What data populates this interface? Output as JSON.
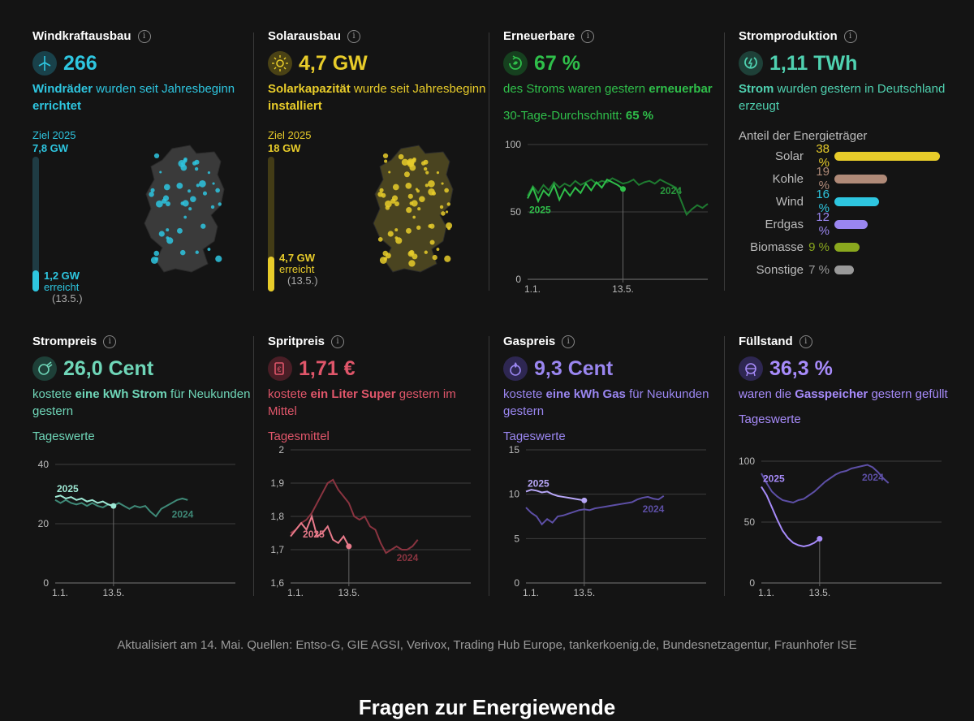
{
  "colors": {
    "wind": "#2ec6e0",
    "solar": "#e8cc2a",
    "renew": "#2fbf4a",
    "strom": "#4fd1b0",
    "strompreis": "#6fd6b8",
    "sprit": "#e0566a",
    "gas": "#9a86f0",
    "fuell": "#a78bfa"
  },
  "wind": {
    "title": "Windkraftausbau",
    "value": "266",
    "desc_1": "Windräder",
    "desc_2": " wurden seit Jahresbeginn ",
    "desc_3": "errichtet",
    "goal_label": "Ziel 2025",
    "goal_value": "7,8 GW",
    "reached_value": "1,2 GW",
    "reached_label": "erreicht",
    "reached_date": "(13.5.)",
    "progress": 0.154,
    "icon": "wind-turbine-icon"
  },
  "solar": {
    "title": "Solarausbau",
    "value": "4,7 GW",
    "desc_1": "Solarkapazität",
    "desc_2": " wurde seit Jahresbeginn ",
    "desc_3": "installiert",
    "goal_label": "Ziel 2025",
    "goal_value": "18 GW",
    "reached_value": "4,7 GW",
    "reached_label": "erreicht",
    "reached_date": "(13.5.)",
    "progress": 0.261,
    "icon": "sun-icon"
  },
  "renew": {
    "title": "Erneuerbare",
    "value": "67 %",
    "desc_1": "des Stroms waren gestern ",
    "desc_2": "erneuerbar",
    "avg_label": "30-Tage-Durchschnitt: ",
    "avg_value": "65 %",
    "icon": "recycle-icon"
  },
  "strom": {
    "title": "Stromproduktion",
    "value": "1,11 TWh",
    "desc_1": "Strom",
    "desc_2": " wurden gestern in Deutschland erzeugt",
    "share_title": "Anteil der Energieträger",
    "icon": "power-plug-icon",
    "shares": [
      {
        "label": "Solar",
        "value": "38 %",
        "pct": 38,
        "color": "#e8cc2a"
      },
      {
        "label": "Kohle",
        "value": "19 %",
        "pct": 19,
        "color": "#b08a78"
      },
      {
        "label": "Wind",
        "value": "16 %",
        "pct": 16,
        "color": "#2ec6e0"
      },
      {
        "label": "Erdgas",
        "value": "12 %",
        "pct": 12,
        "color": "#9a86f0"
      },
      {
        "label": "Biomasse",
        "value": "9 %",
        "pct": 9,
        "color": "#8aa81e"
      },
      {
        "label": "Sonstige",
        "value": "7 %",
        "pct": 7,
        "color": "#9a9a9a"
      }
    ]
  },
  "strompreis": {
    "title": "Strompreis",
    "value": "26,0 Cent",
    "desc_1": "kostete ",
    "desc_2": "eine kWh Strom",
    "desc_3": " für Neukunden gestern",
    "sub": "Tageswerte",
    "icon": "plug-coin-icon"
  },
  "sprit": {
    "title": "Spritpreis",
    "value": "1,71 €",
    "desc_1": "kostete ",
    "desc_2": "ein Liter Super",
    "desc_3": " gestern im Mittel",
    "sub": "Tagesmittel",
    "icon": "fuel-pump-icon"
  },
  "gas": {
    "title": "Gaspreis",
    "value": "9,3 Cent",
    "desc_1": "kostete ",
    "desc_2": "eine kWh Gas",
    "desc_3": " für Neukunden gestern",
    "sub": "Tageswerte",
    "icon": "flame-coin-icon"
  },
  "fuell": {
    "title": "Füllstand",
    "value": "36,3 %",
    "desc_1": "waren die ",
    "desc_2": "Gasspeicher",
    "desc_3": " gestern gefüllt",
    "sub": "Tageswerte",
    "icon": "gas-tank-icon"
  },
  "footer": "Aktualisiert am 14. Mai. Quellen: Entso-G, GIE AGSI, Verivox, Trading Hub Europe, tankerkoenig.de, Bundesnetzagentur, Fraunhofer ISE",
  "heading": "Fragen zur Energiewende",
  "chart_data": [
    {
      "id": "renew",
      "type": "line",
      "ylim": [
        0,
        100
      ],
      "yticks": [
        "0",
        "50",
        "100"
      ],
      "xticks": [
        "1.1.",
        "13.5."
      ],
      "series_labels": [
        "2025",
        "2024"
      ],
      "series": [
        {
          "name": "2025",
          "values": [
            60,
            68,
            58,
            66,
            62,
            70,
            59,
            67,
            62,
            68,
            64,
            71,
            66,
            72,
            68,
            74,
            72,
            70,
            67
          ]
        },
        {
          "name": "2024",
          "values": [
            62,
            69,
            64,
            70,
            66,
            72,
            68,
            71,
            69,
            73,
            70,
            72,
            74,
            71,
            73,
            72,
            75,
            73,
            71,
            72,
            74,
            70,
            72,
            73,
            71,
            74,
            72,
            70,
            68,
            58,
            48,
            52,
            55,
            53,
            56
          ]
        }
      ]
    },
    {
      "id": "strompreis",
      "type": "line",
      "ylim": [
        0,
        40
      ],
      "yticks": [
        "0",
        "20",
        "40"
      ],
      "xticks": [
        "1.1.",
        "13.5."
      ],
      "series_labels": [
        "2025",
        "2024"
      ],
      "series": [
        {
          "name": "2025",
          "values": [
            29,
            29.5,
            28.5,
            29,
            28,
            28.5,
            27.5,
            28,
            27,
            27.5,
            26.5,
            26
          ]
        },
        {
          "name": "2024",
          "values": [
            28,
            27,
            28,
            27,
            26.5,
            27,
            26,
            27,
            26,
            25.5,
            26.5,
            26,
            27,
            26,
            25,
            26,
            25.5,
            26,
            24,
            22.5,
            25,
            26,
            27,
            28,
            28.5,
            28
          ]
        }
      ]
    },
    {
      "id": "sprit",
      "type": "line",
      "ylim": [
        1.6,
        2
      ],
      "yticks": [
        "1,6",
        "1,7",
        "1,8",
        "1,9",
        "2"
      ],
      "xticks": [
        "1.1.",
        "13.5."
      ],
      "series_labels": [
        "2025",
        "2024"
      ],
      "series": [
        {
          "name": "2025",
          "values": [
            1.74,
            1.76,
            1.78,
            1.76,
            1.8,
            1.74,
            1.75,
            1.77,
            1.73,
            1.72,
            1.74,
            1.71
          ]
        },
        {
          "name": "2024",
          "values": [
            1.75,
            1.76,
            1.78,
            1.79,
            1.81,
            1.84,
            1.87,
            1.9,
            1.91,
            1.88,
            1.86,
            1.84,
            1.8,
            1.79,
            1.8,
            1.77,
            1.76,
            1.72,
            1.69,
            1.7,
            1.71,
            1.7,
            1.7,
            1.71,
            1.73
          ]
        }
      ]
    },
    {
      "id": "gas",
      "type": "line",
      "ylim": [
        0,
        15
      ],
      "yticks": [
        "0",
        "5",
        "10",
        "15"
      ],
      "xticks": [
        "1.1.",
        "13.5."
      ],
      "series_labels": [
        "2025",
        "2024"
      ],
      "series": [
        {
          "name": "2025",
          "values": [
            10.3,
            10.5,
            10.4,
            10.2,
            10.3,
            10,
            9.8,
            9.7,
            9.6,
            9.5,
            9.4,
            9.3
          ]
        },
        {
          "name": "2024",
          "values": [
            8.5,
            7.9,
            7.5,
            6.6,
            7.2,
            6.8,
            7.5,
            7.6,
            7.8,
            8,
            8.2,
            8.3,
            8.2,
            8.4,
            8.5,
            8.6,
            8.7,
            8.8,
            8.9,
            9,
            9.1,
            9.4,
            9.6,
            9.7,
            9.5,
            9.4,
            9.8
          ]
        }
      ]
    },
    {
      "id": "fuell",
      "type": "line",
      "ylim": [
        0,
        100
      ],
      "yticks": [
        "0",
        "50",
        "100"
      ],
      "xticks": [
        "1.1.",
        "13.5."
      ],
      "series_labels": [
        "2025",
        "2024"
      ],
      "series": [
        {
          "name": "2025",
          "values": [
            79,
            72,
            62,
            52,
            43,
            37,
            33,
            31,
            30,
            31,
            33,
            36.3
          ]
        },
        {
          "name": "2024",
          "values": [
            90,
            82,
            75,
            71,
            68,
            67,
            66,
            68,
            69,
            72,
            75,
            79,
            83,
            86,
            89,
            91,
            92,
            94,
            95,
            96,
            97,
            95,
            91,
            86,
            82
          ]
        }
      ]
    }
  ]
}
